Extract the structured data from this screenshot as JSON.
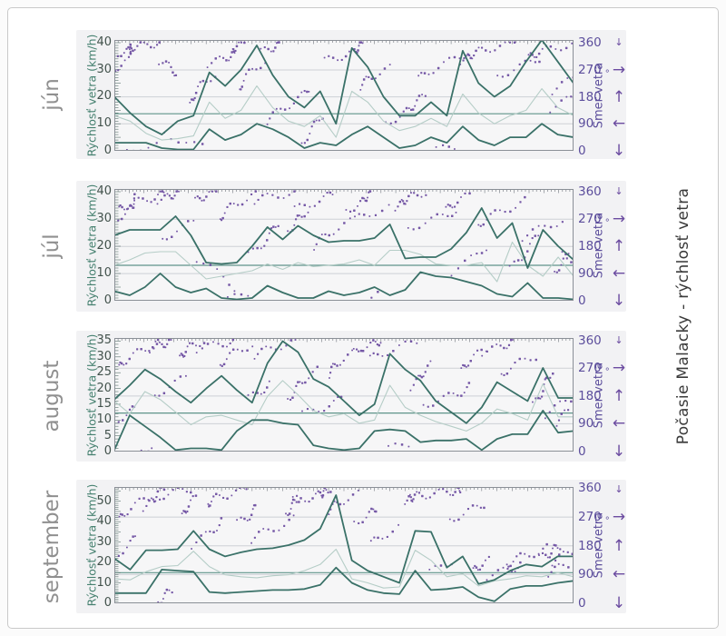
{
  "page": {
    "title_vertical": "Počasie Malacky - rýchlosť vetra"
  },
  "axes": {
    "left_axis_title": "Rýchlosť vetra (km/h)",
    "right_axis_title": "Smer vetra",
    "degree_symbol": "°",
    "direction_arrows": [
      {
        "dir": 360,
        "glyph": "↓",
        "small": true
      },
      {
        "dir": 270,
        "glyph": "→",
        "small": false
      },
      {
        "dir": 180,
        "glyph": "↑",
        "small": false
      },
      {
        "dir": 90,
        "glyph": "←",
        "small": false
      },
      {
        "dir": 0,
        "glyph": "↓",
        "small": false
      }
    ]
  },
  "colors": {
    "speed_line": "#3a7168",
    "avg_line": "#b5cdc7",
    "mean_line": "#5f948a",
    "direction_dots": "#6b4ba0",
    "right_axis_text": "#5c4e9c",
    "left_axis_text": "#41514b",
    "left_axis_title": "#45806f",
    "month_label": "#909090",
    "title_text": "#3a3a3a",
    "panel_bg": "#f2f2f4",
    "plot_bg": "#f6f6f7",
    "grid": "#cdd0d6",
    "frame_stroke": "#8b9097",
    "tick_stroke": "#6d737b"
  },
  "chart_data": [
    {
      "type": "line+scatter",
      "month": "jún",
      "days": 30,
      "speed_axis_max": 41,
      "speed_ticks": [
        0,
        10,
        20,
        30,
        40
      ],
      "dir_axis_max": 370,
      "dir_ticks": [
        0,
        90,
        180,
        270,
        360
      ],
      "month_mean_line": 13.7,
      "series": {
        "max": [
          20,
          14,
          9,
          6,
          11,
          13,
          29,
          24,
          30,
          39,
          28,
          20,
          16,
          22,
          10,
          38,
          31,
          20,
          13,
          13,
          18,
          13,
          37,
          25,
          20,
          24,
          33,
          41,
          33,
          25
        ],
        "avg": [
          13,
          11,
          6.5,
          4,
          4.5,
          5.5,
          18,
          12,
          15,
          24,
          16,
          11,
          9,
          13,
          5,
          22,
          18,
          11,
          7.5,
          9,
          12,
          9,
          21,
          14,
          10,
          13,
          15,
          23,
          16,
          13
        ],
        "min": [
          3,
          3,
          3,
          1,
          0.5,
          0.5,
          8,
          4,
          6,
          10,
          8,
          5,
          1,
          3,
          2,
          6,
          9,
          5,
          1,
          2,
          5,
          3,
          9,
          4,
          2,
          5,
          5,
          10,
          6,
          5
        ]
      },
      "direction_segments": [
        [
          1,
          3.5,
          325,
          360,
          24
        ],
        [
          1,
          2,
          258,
          300,
          8
        ],
        [
          3.5,
          5,
          300,
          258,
          8
        ],
        [
          4.5,
          6.5,
          60,
          10,
          6
        ],
        [
          5.5,
          7.5,
          150,
          255,
          12
        ],
        [
          7,
          9.5,
          290,
          360,
          18
        ],
        [
          9,
          10.5,
          205,
          300,
          10
        ],
        [
          10,
          11.5,
          330,
          360,
          9
        ],
        [
          11,
          13,
          100,
          210,
          13
        ],
        [
          12.5,
          14.5,
          25,
          120,
          9
        ],
        [
          14.5,
          17,
          300,
          360,
          16
        ],
        [
          16.5,
          18.5,
          215,
          275,
          10
        ],
        [
          18,
          21,
          95,
          185,
          14
        ],
        [
          20.5,
          23,
          240,
          330,
          12
        ],
        [
          22.5,
          26,
          300,
          360,
          18
        ],
        [
          25.5,
          27.5,
          250,
          310,
          9
        ],
        [
          27,
          30,
          310,
          360,
          14
        ],
        [
          28.5,
          30,
          140,
          195,
          7
        ],
        [
          2,
          4,
          2,
          18,
          5
        ],
        [
          21,
          22.2,
          2,
          15,
          4
        ],
        [
          29,
          30,
          200,
          240,
          5
        ]
      ]
    },
    {
      "type": "line+scatter",
      "month": "júl",
      "days": 31,
      "speed_axis_max": 41,
      "speed_ticks": [
        0,
        10,
        20,
        30,
        40
      ],
      "dir_axis_max": 370,
      "dir_ticks": [
        0,
        90,
        180,
        270,
        360
      ],
      "month_mean_line": 13,
      "series": {
        "max": [
          24,
          26,
          26,
          26,
          31,
          24,
          14,
          13.5,
          14,
          20,
          27,
          22.5,
          27.5,
          24,
          21.5,
          22,
          22,
          23,
          28,
          15.5,
          16,
          16,
          19,
          25,
          34,
          23,
          28.5,
          12,
          26,
          20,
          15
        ],
        "avg": [
          13,
          15,
          17.5,
          18,
          18,
          13,
          8,
          9,
          10,
          11,
          13.5,
          11.5,
          14,
          12.5,
          13,
          13.5,
          15,
          13,
          18.5,
          18.5,
          17,
          13.5,
          13,
          13,
          14,
          7,
          21.5,
          13,
          9,
          16,
          9
        ],
        "min": [
          3.5,
          2,
          5,
          10,
          5,
          3,
          4.5,
          1,
          0.5,
          1,
          5.5,
          3,
          1,
          1,
          3.5,
          2,
          3,
          5,
          2,
          4,
          10.5,
          9,
          8.5,
          7,
          5.5,
          2.5,
          1.5,
          6.5,
          1,
          1,
          0.5
        ]
      },
      "direction_segments": [
        [
          1,
          2.5,
          270,
          340,
          12
        ],
        [
          1.5,
          4,
          300,
          360,
          16
        ],
        [
          3.5,
          5.5,
          332,
          360,
          10
        ],
        [
          4.5,
          6,
          205,
          260,
          7
        ],
        [
          6,
          8,
          330,
          360,
          9
        ],
        [
          6.5,
          8.5,
          140,
          45,
          7
        ],
        [
          8,
          10,
          270,
          355,
          12
        ],
        [
          9.5,
          12,
          150,
          260,
          11
        ],
        [
          10.5,
          12.5,
          332,
          360,
          9
        ],
        [
          12,
          14,
          230,
          300,
          10
        ],
        [
          13,
          15,
          302,
          357,
          10
        ],
        [
          14,
          16.5,
          180,
          260,
          10
        ],
        [
          16,
          18,
          300,
          360,
          12
        ],
        [
          17,
          19,
          268,
          310,
          7
        ],
        [
          19,
          21.5,
          310,
          360,
          14
        ],
        [
          20.5,
          23,
          240,
          300,
          10
        ],
        [
          22.5,
          24.5,
          300,
          348,
          9
        ],
        [
          23,
          25,
          95,
          180,
          7
        ],
        [
          25,
          27.5,
          250,
          330,
          12
        ],
        [
          26.5,
          29,
          105,
          220,
          10
        ],
        [
          28,
          30,
          210,
          268,
          8
        ],
        [
          29.5,
          31,
          95,
          150,
          7
        ],
        [
          8.5,
          9.5,
          2,
          25,
          4
        ],
        [
          17.5,
          18.5,
          5,
          20,
          3
        ],
        [
          30,
          31,
          160,
          120,
          5
        ]
      ]
    },
    {
      "type": "line+scatter",
      "month": "august",
      "days": 31,
      "speed_axis_max": 36,
      "speed_ticks": [
        0,
        5,
        10,
        15,
        20,
        25,
        30,
        35
      ],
      "dir_axis_max": 368,
      "dir_ticks": [
        0,
        90,
        180,
        270,
        360
      ],
      "month_mean_line": 12.2,
      "series": {
        "max": [
          16.5,
          21,
          26,
          23,
          19,
          15.5,
          20,
          24,
          19.5,
          15.5,
          28,
          35,
          31.5,
          23,
          20.5,
          16,
          11.5,
          15,
          31,
          26,
          22.5,
          16,
          12.5,
          9,
          14,
          22,
          19,
          16,
          26.5,
          17,
          17
        ],
        "avg": [
          16,
          12,
          19,
          16.5,
          12.5,
          8.5,
          11,
          11.5,
          10,
          8.5,
          17.5,
          22.5,
          18,
          13,
          11,
          12,
          9,
          10,
          21,
          14,
          11.5,
          9.5,
          8,
          6.5,
          9,
          13.5,
          12,
          10,
          21.5,
          11,
          11
        ],
        "min": [
          0.5,
          11.5,
          8,
          4.5,
          0.5,
          1,
          1,
          0.5,
          6.5,
          10,
          10,
          9,
          8.5,
          2,
          1,
          0.5,
          1,
          6.5,
          7,
          6.5,
          3,
          3.5,
          3.5,
          4,
          0.5,
          4,
          5.5,
          5.5,
          13,
          6,
          6.5
        ]
      },
      "direction_segments": [
        [
          1,
          2,
          100,
          140,
          7
        ],
        [
          1.5,
          3.5,
          270,
          360,
          14
        ],
        [
          3,
          5,
          332,
          360,
          10
        ],
        [
          4,
          5.5,
          182,
          240,
          7
        ],
        [
          5,
          7,
          300,
          360,
          12
        ],
        [
          6.5,
          8.5,
          332,
          360,
          9
        ],
        [
          8,
          10,
          280,
          348,
          10
        ],
        [
          9.5,
          11,
          172,
          220,
          7
        ],
        [
          10.5,
          12.5,
          312,
          360,
          10
        ],
        [
          12,
          14.5,
          170,
          262,
          12
        ],
        [
          13.5,
          15.5,
          120,
          170,
          9
        ],
        [
          15,
          17,
          250,
          330,
          12
        ],
        [
          16.5,
          18.5,
          332,
          360,
          10
        ],
        [
          18,
          20.5,
          300,
          356,
          10
        ],
        [
          20,
          22,
          210,
          280,
          10
        ],
        [
          21.5,
          24,
          150,
          210,
          12
        ],
        [
          23.5,
          25.5,
          260,
          330,
          10
        ],
        [
          25,
          27,
          322,
          360,
          10
        ],
        [
          26.5,
          28.5,
          250,
          310,
          9
        ],
        [
          28,
          30,
          150,
          262,
          12
        ],
        [
          29.5,
          31,
          120,
          180,
          7
        ],
        [
          2.5,
          3.5,
          2,
          15,
          4
        ],
        [
          19,
          20,
          8,
          25,
          4
        ],
        [
          30,
          31,
          95,
          130,
          5
        ]
      ]
    },
    {
      "type": "line+scatter",
      "month": "september",
      "days": 30,
      "speed_axis_max": 57,
      "speed_ticks": [
        0,
        10,
        20,
        30,
        40,
        50
      ],
      "dir_axis_max": 364,
      "dir_ticks": [
        0,
        90,
        180,
        270,
        360
      ],
      "month_mean_line": 15,
      "series": {
        "max": [
          22,
          16.5,
          26,
          26,
          26.5,
          35.5,
          26.5,
          23,
          25,
          26.5,
          27,
          28.5,
          31,
          36.5,
          53,
          21,
          16,
          13,
          10,
          35.5,
          35,
          17.5,
          23,
          9.5,
          11.5,
          16,
          19,
          18,
          23,
          23
        ],
        "avg": [
          12,
          11.5,
          15.5,
          18,
          18.5,
          25.5,
          18,
          14,
          13,
          12.5,
          13.5,
          14,
          16,
          19,
          26.5,
          12,
          10,
          7.5,
          8,
          26,
          21,
          13,
          14.5,
          8.5,
          11,
          12,
          13.5,
          13,
          15,
          13
        ],
        "min": [
          5,
          5,
          5,
          16.5,
          16,
          15.5,
          5.5,
          5,
          5.5,
          6,
          6.5,
          6.5,
          7,
          9,
          17.5,
          10,
          6.5,
          5,
          4.5,
          16,
          6.5,
          7,
          8,
          3,
          1,
          7,
          8.5,
          8.5,
          10,
          11
        ]
      },
      "direction_segments": [
        [
          1,
          2,
          150,
          205,
          7
        ],
        [
          1.5,
          3,
          260,
          330,
          10
        ],
        [
          2.5,
          4.5,
          300,
          360,
          12
        ],
        [
          4,
          5.5,
          332,
          360,
          9
        ],
        [
          5,
          6.5,
          270,
          330,
          9
        ],
        [
          6,
          7.5,
          182,
          260,
          9
        ],
        [
          7,
          9,
          310,
          360,
          14
        ],
        [
          8.5,
          10,
          250,
          300,
          9
        ],
        [
          10,
          12,
          200,
          262,
          10
        ],
        [
          11.5,
          13,
          280,
          330,
          9
        ],
        [
          12.5,
          15,
          322,
          360,
          18
        ],
        [
          14.5,
          16.5,
          290,
          340,
          10
        ],
        [
          16,
          17.5,
          255,
          300,
          9
        ],
        [
          17.5,
          19,
          185,
          238,
          7
        ],
        [
          19,
          23,
          322,
          360,
          26
        ],
        [
          22.5,
          24,
          262,
          312,
          9
        ],
        [
          23.5,
          25,
          100,
          132,
          8
        ],
        [
          24.5,
          26.5,
          85,
          122,
          9
        ],
        [
          26,
          28,
          120,
          172,
          12
        ],
        [
          27.5,
          29.5,
          140,
          182,
          11
        ],
        [
          29,
          30,
          130,
          168,
          7
        ],
        [
          3.5,
          5,
          2,
          40,
          8
        ],
        [
          21,
          22,
          95,
          135,
          5
        ],
        [
          28.5,
          30,
          95,
          120,
          6
        ]
      ]
    }
  ]
}
